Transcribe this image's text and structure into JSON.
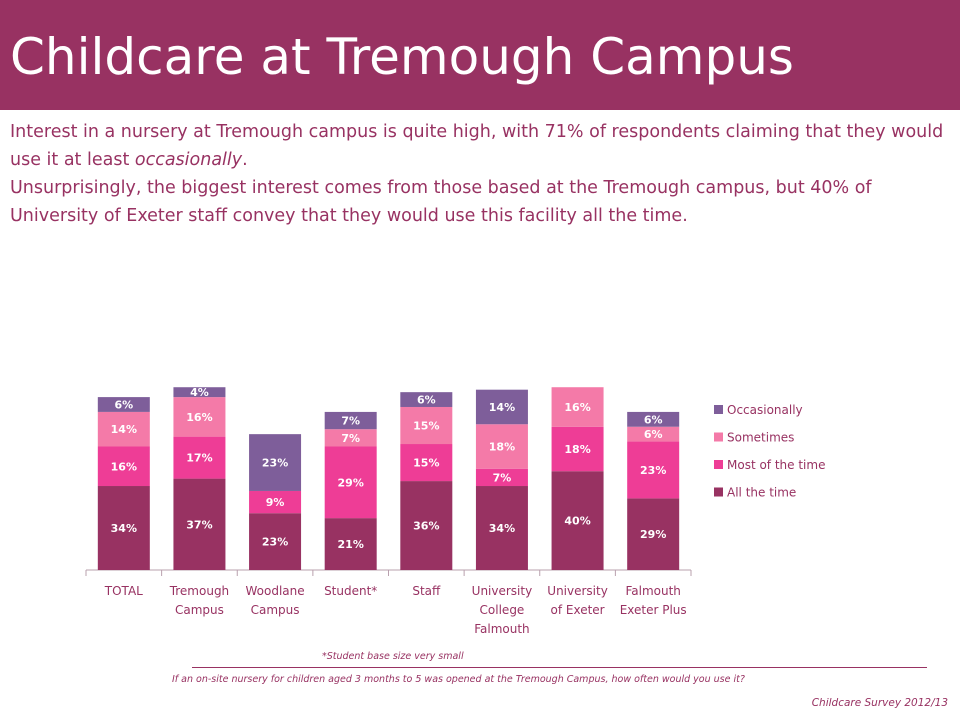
{
  "title": "Childcare at Tremough Campus",
  "intro": {
    "line1_start": "Interest in a nursery  at Tremough campus is quite high, with 71% of respondents claiming that they would use it at least ",
    "line1_em": "occasionally",
    "line1_end": ".",
    "line2": "Unsurprisingly, the biggest interest comes from those based at the Tremough campus, but 40% of University of Exeter staff convey that they would use this facility all the time."
  },
  "chart_data": {
    "type": "bar",
    "stacked": true,
    "categories": [
      [
        "TOTAL"
      ],
      [
        "Tremough",
        "Campus"
      ],
      [
        "Woodlane",
        "Campus"
      ],
      [
        "Student*"
      ],
      [
        "Staff"
      ],
      [
        "University",
        "College",
        "Falmouth"
      ],
      [
        "University",
        "of Exeter"
      ],
      [
        "Falmouth",
        "Exeter Plus"
      ]
    ],
    "series": [
      {
        "name": "All the time",
        "color": "#983262",
        "values": [
          34,
          37,
          23,
          21,
          36,
          34,
          40,
          29
        ]
      },
      {
        "name": "Most of the time",
        "color": "#ee3d96",
        "values": [
          16,
          17,
          9,
          29,
          15,
          7,
          18,
          23
        ]
      },
      {
        "name": "Sometimes",
        "color": "#f47aa8",
        "values": [
          14,
          16,
          null,
          7,
          15,
          18,
          16,
          6
        ]
      },
      {
        "name": "Occasionally",
        "color": "#7e5e9a",
        "values": [
          6,
          4,
          23,
          7,
          6,
          14,
          null,
          6
        ]
      }
    ],
    "value_suffix": "%",
    "legend_position": "right",
    "legend_order": [
      "Occasionally",
      "Sometimes",
      "Most of the time",
      "All the time"
    ],
    "ylim": [
      0,
      85
    ],
    "grid": false
  },
  "notes": {
    "student": "*Student base size very small",
    "question": "If an on-site nursery for children aged 3 months to 5 was opened at the Tremough Campus, how often would you use it?",
    "survey": "Childcare Survey 2012/13"
  }
}
